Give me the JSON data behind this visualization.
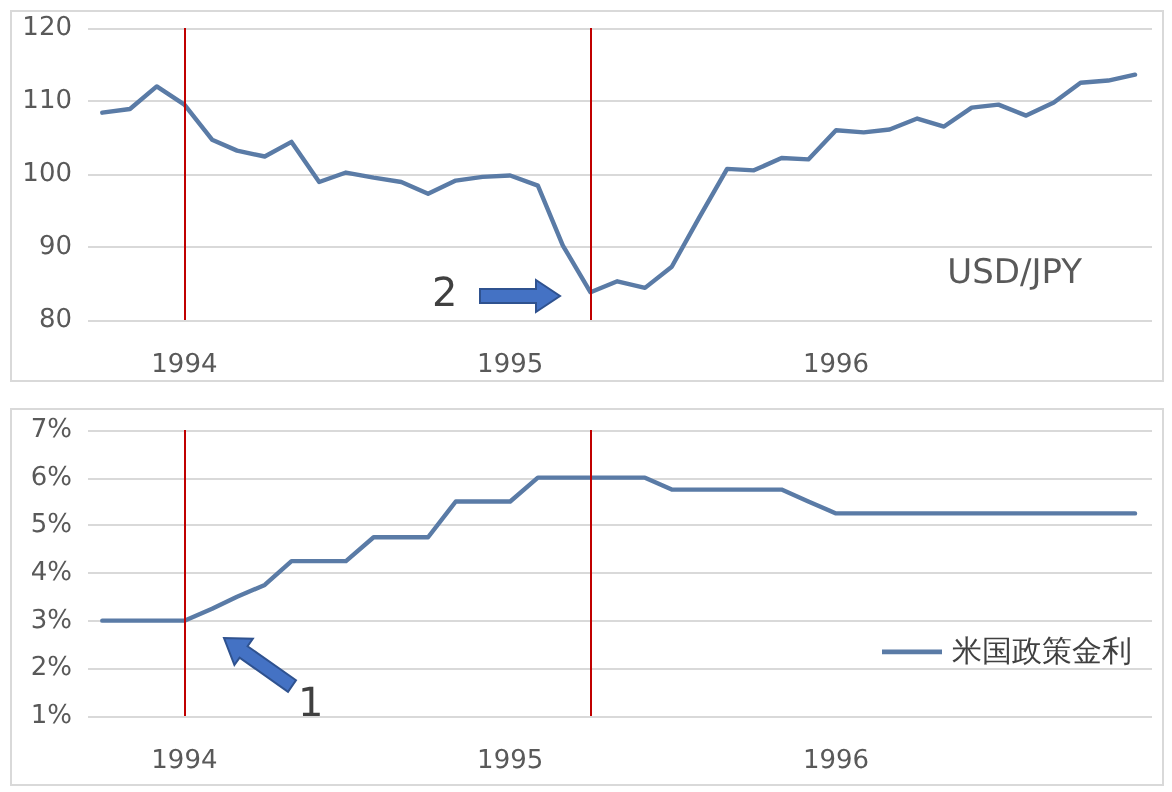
{
  "chart_data": [
    {
      "type": "line",
      "x": [
        "1993-10",
        "1993-11",
        "1993-12",
        "1994-01",
        "1994-02",
        "1994-03",
        "1994-04",
        "1994-05",
        "1994-06",
        "1994-07",
        "1994-08",
        "1994-09",
        "1994-10",
        "1994-11",
        "1994-12",
        "1995-01",
        "1995-02",
        "1995-03",
        "1995-04",
        "1995-05",
        "1995-06",
        "1995-07",
        "1995-08",
        "1995-09",
        "1995-10",
        "1995-11",
        "1995-12",
        "1996-01",
        "1996-02",
        "1996-03",
        "1996-04",
        "1996-05",
        "1996-06",
        "1996-07",
        "1996-08",
        "1996-09",
        "1996-10",
        "1996-11",
        "1996-12"
      ],
      "series": [
        {
          "name": "USD/JPY",
          "color": "#5a7ba6",
          "values": [
            108.4,
            108.9,
            112.0,
            109.5,
            104.7,
            103.2,
            102.4,
            104.4,
            98.9,
            100.2,
            99.5,
            98.9,
            97.3,
            99.1,
            99.6,
            99.8,
            98.4,
            90.2,
            83.8,
            85.3,
            84.4,
            87.3,
            94.1,
            100.7,
            100.5,
            102.2,
            102.0,
            106.0,
            105.7,
            106.1,
            107.6,
            106.5,
            109.1,
            109.5,
            108.0,
            109.8,
            112.5,
            112.8,
            113.6
          ]
        }
      ],
      "xlim": [
        "1993-09-15",
        "1996-12-20"
      ],
      "xticks": [
        "1994",
        "1995",
        "1996"
      ],
      "ylim": [
        80,
        120
      ],
      "yticks": [
        80,
        90,
        100,
        110,
        120
      ],
      "grid": "y",
      "legend": false,
      "marker": "none",
      "line_style": "solid",
      "ref_lines": [
        {
          "axis": "x",
          "value": "1994-01",
          "color": "#c00000"
        },
        {
          "axis": "x",
          "value": "1995-04",
          "color": "#c00000"
        }
      ],
      "annotations": [
        "2"
      ]
    },
    {
      "type": "line",
      "x": [
        "1993-10",
        "1993-11",
        "1993-12",
        "1994-01",
        "1994-02",
        "1994-03",
        "1994-04",
        "1994-05",
        "1994-06",
        "1994-07",
        "1994-08",
        "1994-09",
        "1994-10",
        "1994-11",
        "1994-12",
        "1995-01",
        "1995-02",
        "1995-03",
        "1995-04",
        "1995-05",
        "1995-06",
        "1995-07",
        "1995-08",
        "1995-09",
        "1995-10",
        "1995-11",
        "1995-12",
        "1996-01",
        "1996-02",
        "1996-03",
        "1996-04",
        "1996-05",
        "1996-06",
        "1996-07",
        "1996-08",
        "1996-09",
        "1996-10",
        "1996-11",
        "1996-12"
      ],
      "series": [
        {
          "name": "米国政策金利",
          "color": "#5a7ba6",
          "values": [
            3,
            3,
            3,
            3,
            3.25,
            3.5,
            3.75,
            4.25,
            4.25,
            4.25,
            4.75,
            4.75,
            4.75,
            5.5,
            5.5,
            5.5,
            6,
            6,
            6,
            6,
            6,
            5.75,
            5.75,
            5.75,
            5.75,
            5.75,
            5.5,
            5.25,
            5.25,
            5.25,
            5.25,
            5.25,
            5.25,
            5.25,
            5.25,
            5.25,
            5.25,
            5.25,
            5.25
          ]
        }
      ],
      "xlim": [
        "1993-09-15",
        "1996-12-20"
      ],
      "xticks": [
        "1994",
        "1995",
        "1996"
      ],
      "ylim": [
        1,
        7
      ],
      "yticks": [
        {
          "value": 1,
          "label": "1%"
        },
        {
          "value": 2,
          "label": "2%"
        },
        {
          "value": 3,
          "label": "3%"
        },
        {
          "value": 4,
          "label": "4%"
        },
        {
          "value": 5,
          "label": "5%"
        },
        {
          "value": 6,
          "label": "6%"
        },
        {
          "value": 7,
          "label": "7%"
        }
      ],
      "grid": "y",
      "legend": "right",
      "marker": "none",
      "line_style": "solid",
      "ref_lines": [
        {
          "axis": "x",
          "value": "1994-01",
          "color": "#c00000"
        },
        {
          "axis": "x",
          "value": "1995-04",
          "color": "#c00000"
        }
      ],
      "annotations": [
        "1"
      ]
    }
  ]
}
